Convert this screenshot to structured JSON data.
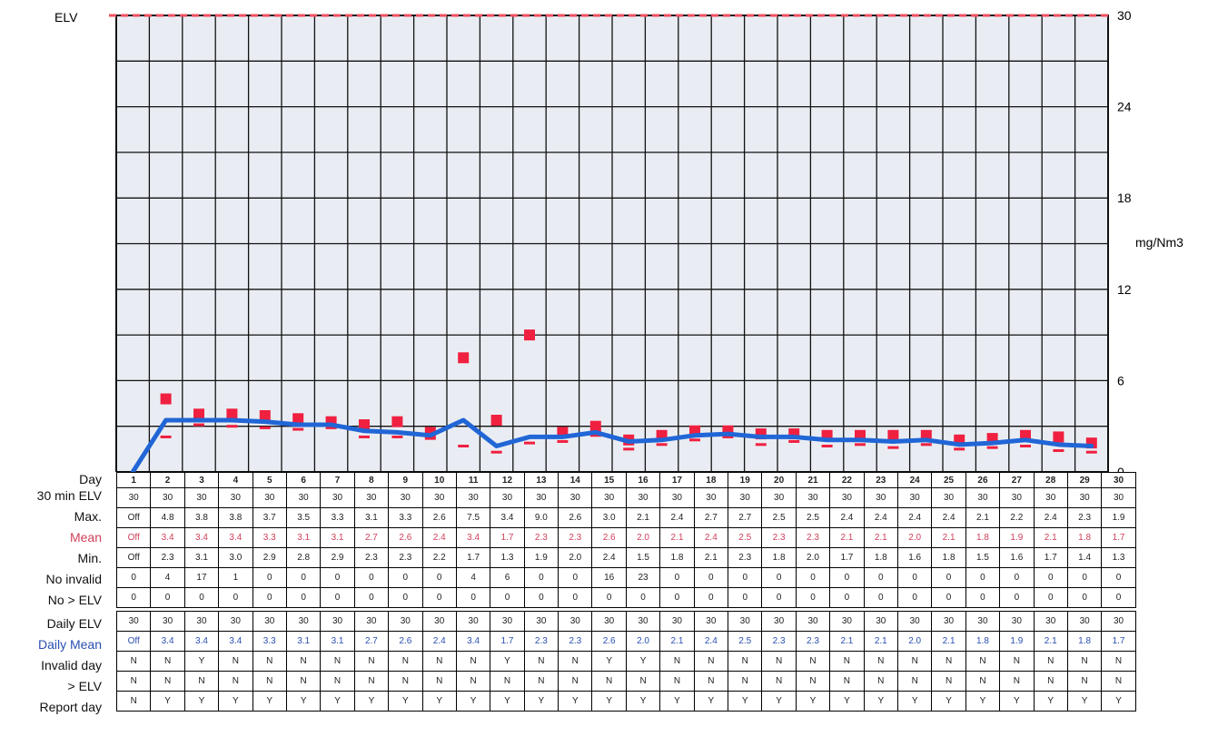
{
  "colors": {
    "grid_bg": "#e9edf3",
    "grid_line": "#111111",
    "mean_marker": "#f02040",
    "daily_mean_line": "#2166d6",
    "elv_line": "#f05060",
    "mean_label": "#d0405a",
    "daily_mean_label": "#2a4fb0"
  },
  "chart_data": {
    "type": "line",
    "title": "",
    "elv_label": "ELV",
    "y_axis_unit": "mg/Nm3",
    "ylim": [
      0,
      30
    ],
    "y_ticks": [
      "0",
      "6",
      "12",
      "18",
      "24",
      "30"
    ],
    "x": [
      1,
      2,
      3,
      4,
      5,
      6,
      7,
      8,
      9,
      10,
      11,
      12,
      13,
      14,
      15,
      16,
      17,
      18,
      19,
      20,
      21,
      22,
      23,
      24,
      25,
      26,
      27,
      28,
      29,
      30
    ],
    "grid": true,
    "legend": "none",
    "series": [
      {
        "name": "ELV",
        "values": [
          30,
          30,
          30,
          30,
          30,
          30,
          30,
          30,
          30,
          30,
          30,
          30,
          30,
          30,
          30,
          30,
          30,
          30,
          30,
          30,
          30,
          30,
          30,
          30,
          30,
          30,
          30,
          30,
          30,
          30
        ]
      },
      {
        "name": "Max.",
        "values": [
          null,
          4.8,
          3.8,
          3.8,
          3.7,
          3.5,
          3.3,
          3.1,
          3.3,
          2.6,
          7.5,
          3.4,
          9.0,
          2.6,
          3.0,
          2.1,
          2.4,
          2.7,
          2.7,
          2.5,
          2.5,
          2.4,
          2.4,
          2.4,
          2.4,
          2.1,
          2.2,
          2.4,
          2.3,
          1.9
        ]
      },
      {
        "name": "Mean",
        "values": [
          null,
          3.4,
          3.4,
          3.4,
          3.3,
          3.1,
          3.1,
          2.7,
          2.6,
          2.4,
          3.4,
          1.7,
          2.3,
          2.3,
          2.6,
          2.0,
          2.1,
          2.4,
          2.5,
          2.3,
          2.3,
          2.1,
          2.1,
          2.0,
          2.1,
          1.8,
          1.9,
          2.1,
          1.8,
          1.7
        ]
      },
      {
        "name": "Min.",
        "values": [
          null,
          2.3,
          3.1,
          3.0,
          2.9,
          2.8,
          2.9,
          2.3,
          2.3,
          2.2,
          1.7,
          1.3,
          1.9,
          2.0,
          2.4,
          1.5,
          1.8,
          2.1,
          2.3,
          1.8,
          2.0,
          1.7,
          1.8,
          1.6,
          1.8,
          1.5,
          1.6,
          1.7,
          1.4,
          1.3
        ]
      },
      {
        "name": "Daily Mean",
        "values": [
          0,
          3.4,
          3.4,
          3.4,
          3.3,
          3.1,
          3.1,
          2.7,
          2.6,
          2.4,
          3.4,
          1.7,
          2.3,
          2.3,
          2.6,
          2.0,
          2.1,
          2.4,
          2.5,
          2.3,
          2.3,
          2.1,
          2.1,
          2.0,
          2.1,
          1.8,
          1.9,
          2.1,
          1.8,
          1.7
        ]
      }
    ]
  },
  "table": {
    "rows": [
      {
        "key": "day",
        "label": "Day",
        "values": [
          "1",
          "2",
          "3",
          "4",
          "5",
          "6",
          "7",
          "8",
          "9",
          "10",
          "11",
          "12",
          "13",
          "14",
          "15",
          "16",
          "17",
          "18",
          "19",
          "20",
          "21",
          "22",
          "23",
          "24",
          "25",
          "26",
          "27",
          "28",
          "29",
          "30"
        ]
      },
      {
        "key": "elv30",
        "label": "30 min ELV",
        "values": [
          "30",
          "30",
          "30",
          "30",
          "30",
          "30",
          "30",
          "30",
          "30",
          "30",
          "30",
          "30",
          "30",
          "30",
          "30",
          "30",
          "30",
          "30",
          "30",
          "30",
          "30",
          "30",
          "30",
          "30",
          "30",
          "30",
          "30",
          "30",
          "30",
          "30"
        ]
      },
      {
        "key": "max",
        "label": "Max.",
        "values": [
          "Off",
          "4.8",
          "3.8",
          "3.8",
          "3.7",
          "3.5",
          "3.3",
          "3.1",
          "3.3",
          "2.6",
          "7.5",
          "3.4",
          "9.0",
          "2.6",
          "3.0",
          "2.1",
          "2.4",
          "2.7",
          "2.7",
          "2.5",
          "2.5",
          "2.4",
          "2.4",
          "2.4",
          "2.4",
          "2.1",
          "2.2",
          "2.4",
          "2.3",
          "1.9"
        ]
      },
      {
        "key": "mean",
        "label": "Mean",
        "values": [
          "Off",
          "3.4",
          "3.4",
          "3.4",
          "3.3",
          "3.1",
          "3.1",
          "2.7",
          "2.6",
          "2.4",
          "3.4",
          "1.7",
          "2.3",
          "2.3",
          "2.6",
          "2.0",
          "2.1",
          "2.4",
          "2.5",
          "2.3",
          "2.3",
          "2.1",
          "2.1",
          "2.0",
          "2.1",
          "1.8",
          "1.9",
          "2.1",
          "1.8",
          "1.7"
        ]
      },
      {
        "key": "min",
        "label": "Min.",
        "values": [
          "Off",
          "2.3",
          "3.1",
          "3.0",
          "2.9",
          "2.8",
          "2.9",
          "2.3",
          "2.3",
          "2.2",
          "1.7",
          "1.3",
          "1.9",
          "2.0",
          "2.4",
          "1.5",
          "1.8",
          "2.1",
          "2.3",
          "1.8",
          "2.0",
          "1.7",
          "1.8",
          "1.6",
          "1.8",
          "1.5",
          "1.6",
          "1.7",
          "1.4",
          "1.3"
        ]
      },
      {
        "key": "noinvalid",
        "label": "No invalid",
        "values": [
          "0",
          "4",
          "17",
          "1",
          "0",
          "0",
          "0",
          "0",
          "0",
          "0",
          "4",
          "6",
          "0",
          "0",
          "16",
          "23",
          "0",
          "0",
          "0",
          "0",
          "0",
          "0",
          "0",
          "0",
          "0",
          "0",
          "0",
          "0",
          "0",
          "0"
        ]
      },
      {
        "key": "noelv",
        "label": "No > ELV",
        "values": [
          "0",
          "0",
          "0",
          "0",
          "0",
          "0",
          "0",
          "0",
          "0",
          "0",
          "0",
          "0",
          "0",
          "0",
          "0",
          "0",
          "0",
          "0",
          "0",
          "0",
          "0",
          "0",
          "0",
          "0",
          "0",
          "0",
          "0",
          "0",
          "0",
          "0"
        ]
      },
      {
        "key": "dailyelv",
        "label": "Daily ELV",
        "values": [
          "30",
          "30",
          "30",
          "30",
          "30",
          "30",
          "30",
          "30",
          "30",
          "30",
          "30",
          "30",
          "30",
          "30",
          "30",
          "30",
          "30",
          "30",
          "30",
          "30",
          "30",
          "30",
          "30",
          "30",
          "30",
          "30",
          "30",
          "30",
          "30",
          "30"
        ]
      },
      {
        "key": "dmean",
        "label": "Daily Mean",
        "values": [
          "Off",
          "3.4",
          "3.4",
          "3.4",
          "3.3",
          "3.1",
          "3.1",
          "2.7",
          "2.6",
          "2.4",
          "3.4",
          "1.7",
          "2.3",
          "2.3",
          "2.6",
          "2.0",
          "2.1",
          "2.4",
          "2.5",
          "2.3",
          "2.3",
          "2.1",
          "2.1",
          "2.0",
          "2.1",
          "1.8",
          "1.9",
          "2.1",
          "1.8",
          "1.7"
        ]
      },
      {
        "key": "invalid",
        "label": "Invalid day",
        "values": [
          "N",
          "N",
          "Y",
          "N",
          "N",
          "N",
          "N",
          "N",
          "N",
          "N",
          "N",
          "Y",
          "N",
          "N",
          "Y",
          "Y",
          "N",
          "N",
          "N",
          "N",
          "N",
          "N",
          "N",
          "N",
          "N",
          "N",
          "N",
          "N",
          "N",
          "N"
        ]
      },
      {
        "key": "gtelv",
        "label": "> ELV",
        "values": [
          "N",
          "N",
          "N",
          "N",
          "N",
          "N",
          "N",
          "N",
          "N",
          "N",
          "N",
          "N",
          "N",
          "N",
          "N",
          "N",
          "N",
          "N",
          "N",
          "N",
          "N",
          "N",
          "N",
          "N",
          "N",
          "N",
          "N",
          "N",
          "N",
          "N"
        ]
      },
      {
        "key": "report",
        "label": "Report day",
        "values": [
          "N",
          "Y",
          "Y",
          "Y",
          "Y",
          "Y",
          "Y",
          "Y",
          "Y",
          "Y",
          "Y",
          "Y",
          "Y",
          "Y",
          "Y",
          "Y",
          "Y",
          "Y",
          "Y",
          "Y",
          "Y",
          "Y",
          "Y",
          "Y",
          "Y",
          "Y",
          "Y",
          "Y",
          "Y",
          "Y"
        ]
      }
    ]
  }
}
